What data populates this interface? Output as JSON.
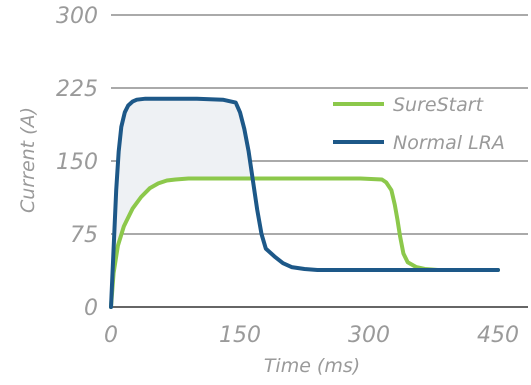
{
  "chart_data": {
    "type": "line",
    "title": "",
    "xlabel": "Time (ms)",
    "ylabel": "Current (A)",
    "xlim": [
      0,
      450
    ],
    "ylim": [
      0,
      300
    ],
    "x_ticks": [
      "0",
      "150",
      "300",
      "450"
    ],
    "y_ticks": [
      "0",
      "75",
      "150",
      "225",
      "300"
    ],
    "grid": "horizontal",
    "legend_position": "top-right",
    "shaded_region": {
      "between": [
        "Normal LRA",
        "SureStart"
      ],
      "color": "#eef1f4"
    },
    "series": [
      {
        "name": "SureStart",
        "color": "#8cc84b",
        "x": [
          0,
          3,
          8,
          15,
          25,
          35,
          45,
          55,
          65,
          75,
          90,
          120,
          200,
          290,
          315,
          320,
          326,
          330,
          333,
          336,
          340,
          345,
          355,
          365,
          380,
          400,
          450
        ],
        "y": [
          0,
          35,
          63,
          83,
          101,
          113,
          122,
          127,
          130,
          131,
          132,
          132,
          132,
          132,
          131,
          128,
          120,
          105,
          90,
          73,
          55,
          46,
          41,
          39,
          38,
          38,
          38
        ]
      },
      {
        "name": "Normal LRA",
        "color": "#1d5888",
        "x": [
          0,
          3,
          6,
          9,
          12,
          16,
          20,
          25,
          30,
          40,
          60,
          100,
          130,
          145,
          150,
          155,
          160,
          165,
          170,
          175,
          180,
          190,
          200,
          210,
          225,
          240,
          260,
          300,
          350,
          400,
          450
        ],
        "y": [
          0,
          60,
          120,
          160,
          185,
          200,
          207,
          211,
          213,
          214,
          214,
          214,
          213,
          210,
          200,
          183,
          160,
          130,
          100,
          75,
          60,
          52,
          45,
          41,
          39,
          38,
          38,
          38,
          38,
          38,
          38
        ]
      }
    ]
  }
}
